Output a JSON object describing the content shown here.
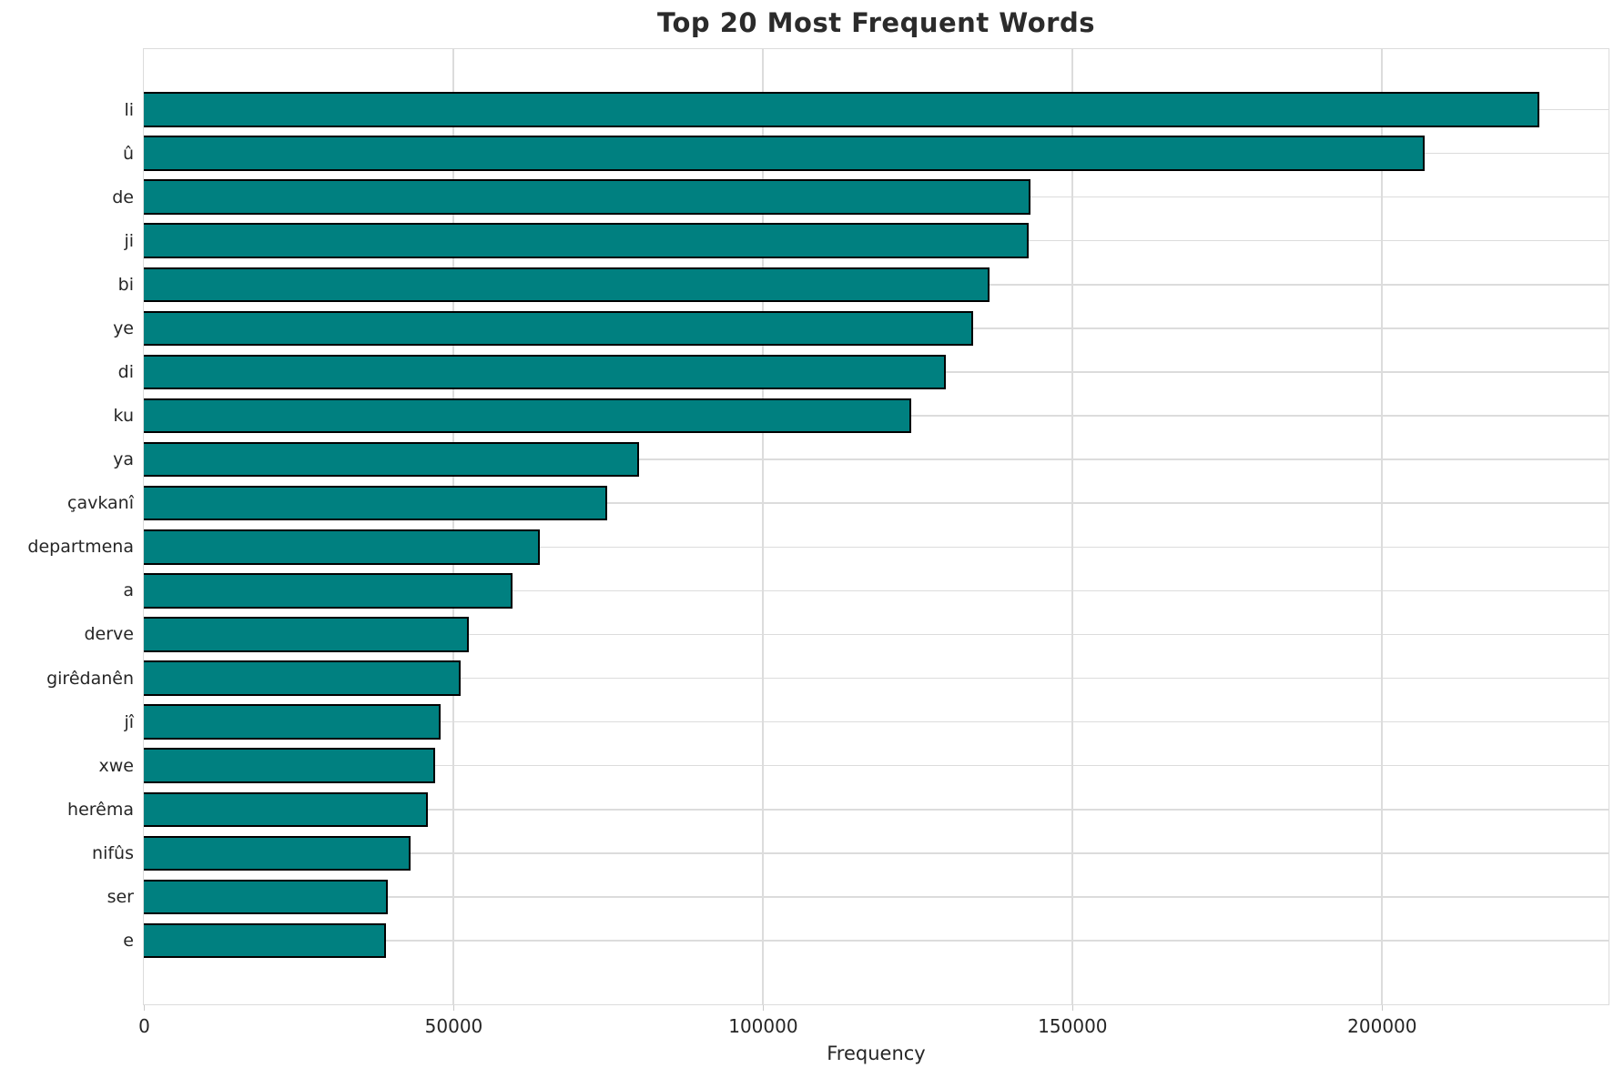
{
  "page": {
    "background_color": "#ffffff"
  },
  "chart_data": {
    "type": "bar",
    "orientation": "horizontal",
    "title": "Top 20 Most Frequent Words",
    "xlabel": "Frequency",
    "ylabel": "",
    "categories": [
      "li",
      "û",
      "de",
      "ji",
      "bi",
      "ye",
      "di",
      "ku",
      "ya",
      "çavkanî",
      "departmena",
      "a",
      "derve",
      "girêdanên",
      "jî",
      "xwe",
      "herêma",
      "nifûs",
      "ser",
      "e"
    ],
    "values": [
      225500,
      207000,
      143200,
      143000,
      136600,
      134000,
      129600,
      124000,
      80000,
      74900,
      64000,
      59500,
      52500,
      51200,
      48000,
      47000,
      45900,
      43100,
      39400,
      39100
    ],
    "x_ticks": [
      0,
      50000,
      100000,
      150000,
      200000
    ],
    "x_tick_labels": [
      "0",
      "50000",
      "100000",
      "150000",
      "200000"
    ],
    "xlim": [
      0,
      236500
    ],
    "grid": true,
    "legend": null,
    "bar_color": "#008080",
    "bar_edge_color": "#000000",
    "grid_color": "#dcdcdc",
    "text_color": "#262626"
  }
}
